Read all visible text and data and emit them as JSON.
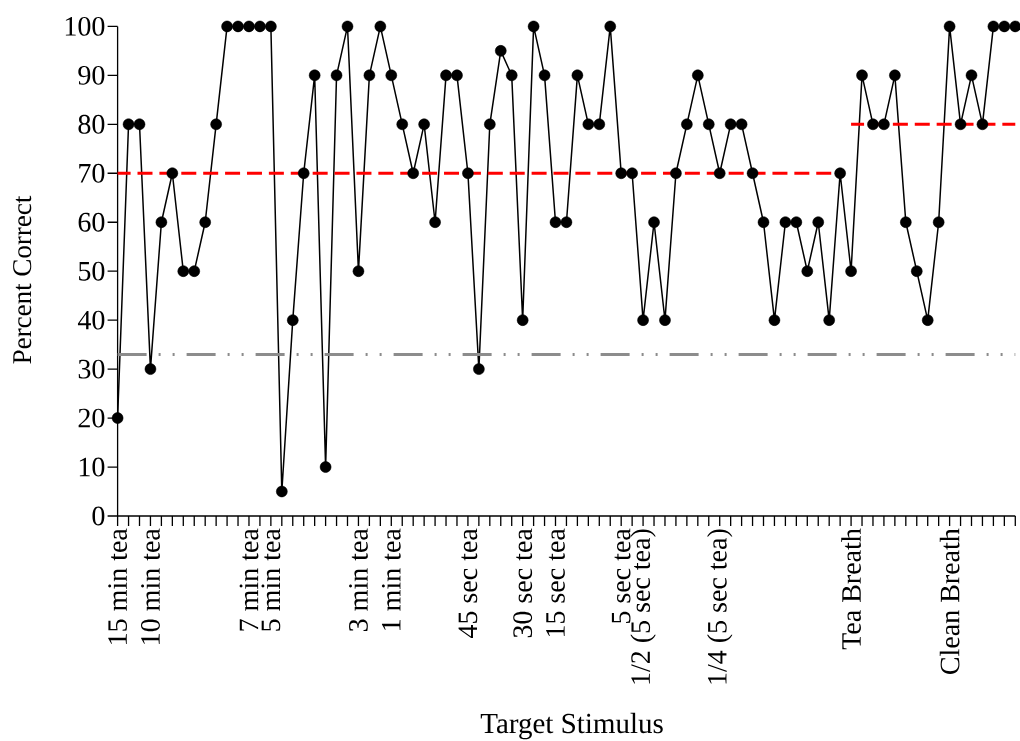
{
  "chart_data": {
    "type": "line",
    "xlabel": "Target Stimulus",
    "ylabel": "Percent Correct",
    "categories": [
      "15 min tea",
      null,
      null,
      "10 min tea",
      null,
      null,
      null,
      null,
      null,
      null,
      null,
      null,
      "7 min tea",
      null,
      "5 min tea",
      null,
      null,
      null,
      null,
      null,
      null,
      null,
      "3 min tea",
      null,
      null,
      "1 min tea",
      null,
      null,
      null,
      null,
      null,
      null,
      "45 sec tea",
      null,
      null,
      null,
      null,
      "30 sec tea",
      null,
      null,
      "15 sec tea",
      null,
      null,
      null,
      null,
      null,
      "5 sec tea",
      null,
      "1/2 (5 sec tea)",
      null,
      null,
      null,
      null,
      null,
      null,
      "1/4 (5 sec tea)",
      null,
      null,
      null,
      null,
      null,
      null,
      null,
      null,
      null,
      null,
      null,
      "Tea Breath",
      null,
      null,
      null,
      null,
      null,
      null,
      null,
      null,
      "Clean Breath",
      null,
      null,
      null,
      null,
      null,
      null
    ],
    "ylim": [
      0,
      100
    ],
    "yticks": [
      0,
      10,
      20,
      30,
      40,
      50,
      60,
      70,
      80,
      90,
      100
    ],
    "marker": "circle",
    "series": [
      {
        "color": "#000000",
        "values": [
          20,
          80,
          80,
          30,
          60,
          70,
          50,
          50,
          60,
          80,
          100,
          100,
          100,
          100,
          100,
          5,
          40,
          70,
          90,
          10,
          90,
          100,
          50,
          90,
          100,
          90,
          80,
          70,
          80,
          60,
          90,
          90,
          70,
          30,
          80,
          95,
          90,
          40,
          100,
          90,
          60,
          60,
          90,
          80,
          80,
          100,
          70,
          70,
          40,
          60,
          40,
          70,
          80,
          90,
          80,
          70,
          80,
          80,
          70,
          60,
          40,
          60,
          60,
          50,
          60,
          40,
          70,
          50,
          90,
          80,
          80,
          90,
          60,
          50,
          40,
          60,
          100,
          80,
          90,
          80,
          100,
          100,
          100
        ]
      },
      {
        "color": "#ff0000",
        "line_style": "dashed",
        "marker": "none",
        "values": [
          70,
          70,
          70,
          70,
          70,
          70,
          70,
          70,
          70,
          70,
          70,
          70,
          70,
          70,
          70,
          70,
          70,
          70,
          70,
          70,
          70,
          70,
          70,
          70,
          70,
          70,
          70,
          70,
          70,
          70,
          70,
          70,
          70,
          70,
          70,
          70,
          70,
          70,
          70,
          70,
          70,
          70,
          70,
          70,
          70,
          70,
          70,
          70,
          70,
          70,
          70,
          70,
          70,
          70,
          70,
          70,
          70,
          70,
          70,
          70,
          70,
          70,
          70,
          70,
          70,
          70,
          70,
          null,
          null,
          null,
          null,
          null,
          null,
          null,
          null,
          null,
          null,
          null,
          null,
          null,
          null,
          null,
          null
        ]
      },
      {
        "color": "#ff0000",
        "line_style": "dashed",
        "marker": "none",
        "values": [
          null,
          null,
          null,
          null,
          null,
          null,
          null,
          null,
          null,
          null,
          null,
          null,
          null,
          null,
          null,
          null,
          null,
          null,
          null,
          null,
          null,
          null,
          null,
          null,
          null,
          null,
          null,
          null,
          null,
          null,
          null,
          null,
          null,
          null,
          null,
          null,
          null,
          null,
          null,
          null,
          null,
          null,
          null,
          null,
          null,
          null,
          null,
          null,
          null,
          null,
          null,
          null,
          null,
          null,
          null,
          null,
          null,
          null,
          null,
          null,
          null,
          null,
          null,
          null,
          null,
          null,
          null,
          80,
          80,
          80,
          80,
          80,
          80,
          80,
          80,
          80,
          80,
          80,
          80,
          80,
          80,
          80,
          80
        ]
      }
    ],
    "ref_lines": [
      {
        "axis": "y",
        "value": 33,
        "color": "#8c8c8c",
        "line_style": "dashdotdot"
      }
    ]
  }
}
